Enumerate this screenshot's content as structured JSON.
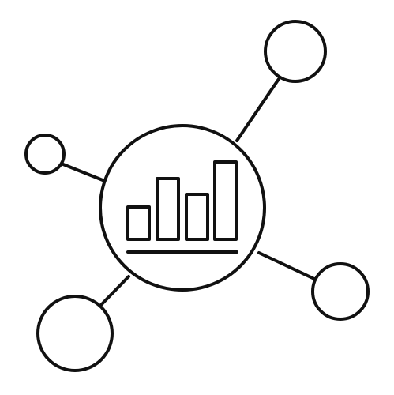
{
  "icon": {
    "name": "network-analytics-icon",
    "stroke_color": "#111111",
    "background_color": "#ffffff",
    "center_hub": {
      "depicts": "bar-chart-icon",
      "bar_count": 4
    },
    "satellite_nodes": [
      {
        "name": "top-right-node"
      },
      {
        "name": "left-node"
      },
      {
        "name": "bottom-left-node"
      },
      {
        "name": "bottom-right-node"
      }
    ]
  }
}
